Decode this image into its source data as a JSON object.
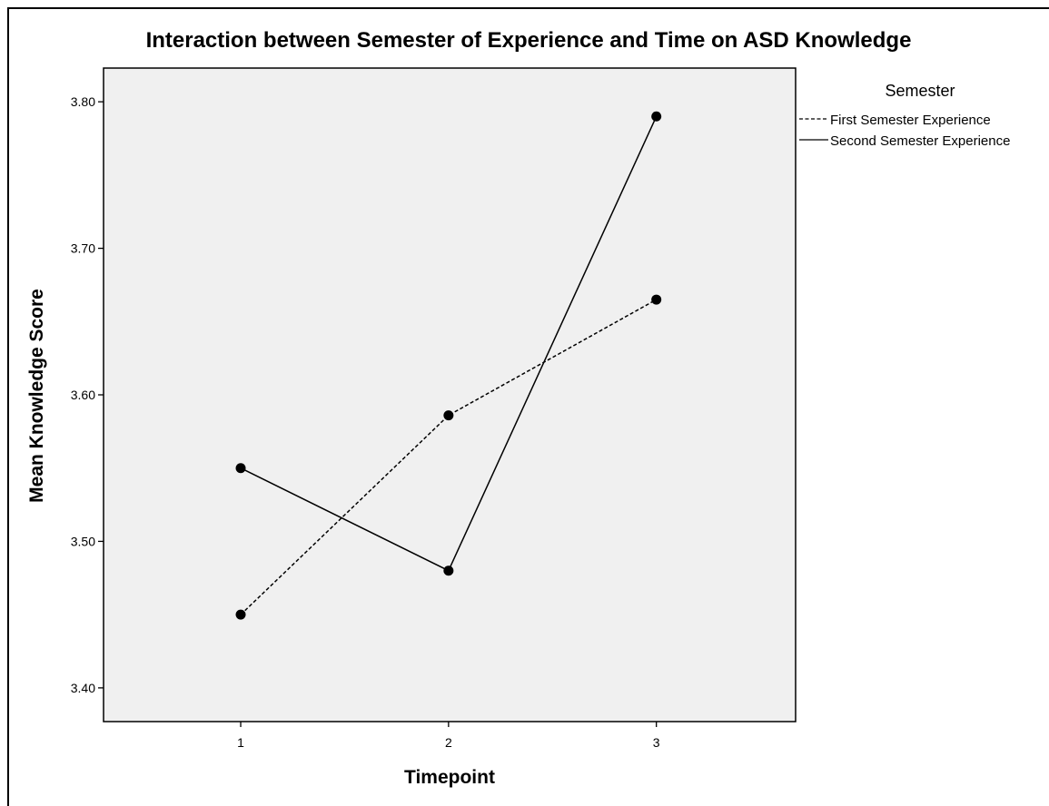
{
  "chart_data": {
    "type": "line",
    "title": "Interaction between Semester of Experience and Time on ASD Knowledge",
    "xlabel": "Timepoint",
    "ylabel": "Mean Knowledge Score",
    "x": [
      1,
      2,
      3
    ],
    "x_tick_labels": [
      "1",
      "2",
      "3"
    ],
    "xlim": [
      0.34,
      3.67
    ],
    "ylim": [
      3.377,
      3.823
    ],
    "y_ticks": [
      3.4,
      3.5,
      3.6,
      3.7,
      3.8
    ],
    "y_tick_labels": [
      "3.40",
      "3.50",
      "3.60",
      "3.70",
      "3.80"
    ],
    "grid": false,
    "legend": {
      "title": "Semester",
      "position": "top-right, outside plot"
    },
    "series": [
      {
        "name": "First Semester Experience",
        "values": [
          3.45,
          3.586,
          3.665
        ],
        "line_style": "dashed",
        "color": "#000000"
      },
      {
        "name": "Second Semester Experience",
        "values": [
          3.55,
          3.48,
          3.79
        ],
        "line_style": "solid",
        "color": "#000000"
      }
    ],
    "plot_background": "#f0f0f0"
  }
}
